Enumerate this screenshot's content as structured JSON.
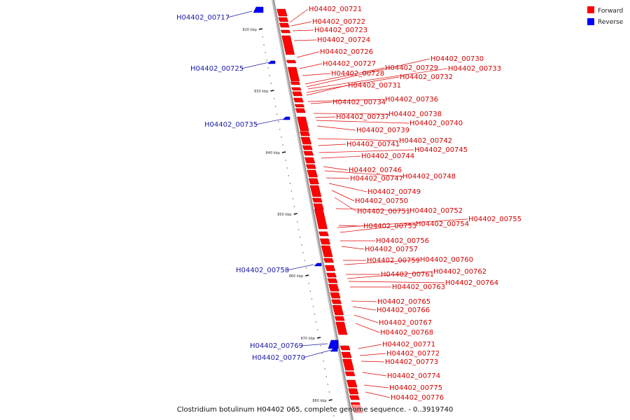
{
  "caption": "Clostridium botulinum H04402 065, complete genome sequence. - 0..3919740",
  "legend": [
    {
      "label": "Forward",
      "color": "#ff0000"
    },
    {
      "label": "Reverse",
      "color": "#0000ff"
    }
  ],
  "ticks": [
    "820 kbp",
    "830 kbp",
    "840 kbp",
    "850 kbp",
    "860 kbp",
    "870 kbp",
    "880 kbp"
  ],
  "forward_genes": [
    "H04402_00721",
    "H04402_00722",
    "H04402_00723",
    "H04402_00724",
    "H04402_00726",
    "H04402_00727",
    "H04402_00728",
    "H04402_00729",
    "H04402_00730",
    "H04402_00733",
    "H04402_00732",
    "H04402_00731",
    "H04402_00736",
    "H04402_00734",
    "H04402_00738",
    "H04402_00737",
    "H04402_00740",
    "H04402_00739",
    "H04402_00742",
    "H04402_00741",
    "H04402_00745",
    "H04402_00744",
    "H04402_00746",
    "H04402_00748",
    "H04402_00747",
    "H04402_00749",
    "H04402_00750",
    "H04402_00751",
    "H04402_00752",
    "H04402_00755",
    "H04402_00753",
    "H04402_00754",
    "H04402_00756",
    "H04402_00757",
    "H04402_00759",
    "H04402_00760",
    "H04402_00761",
    "H04402_00762",
    "H04402_00764",
    "H04402_00763",
    "H04402_00765",
    "H04402_00766",
    "H04402_00767",
    "H04402_00768",
    "H04402_00771",
    "H04402_00772",
    "H04402_00773",
    "H04402_00774",
    "H04402_00775",
    "H04402_00776"
  ],
  "reverse_genes": [
    "H04402_00717",
    "H04402_00725",
    "H04402_00735",
    "H04402_00758",
    "H04402_00769",
    "H04402_00770"
  ]
}
